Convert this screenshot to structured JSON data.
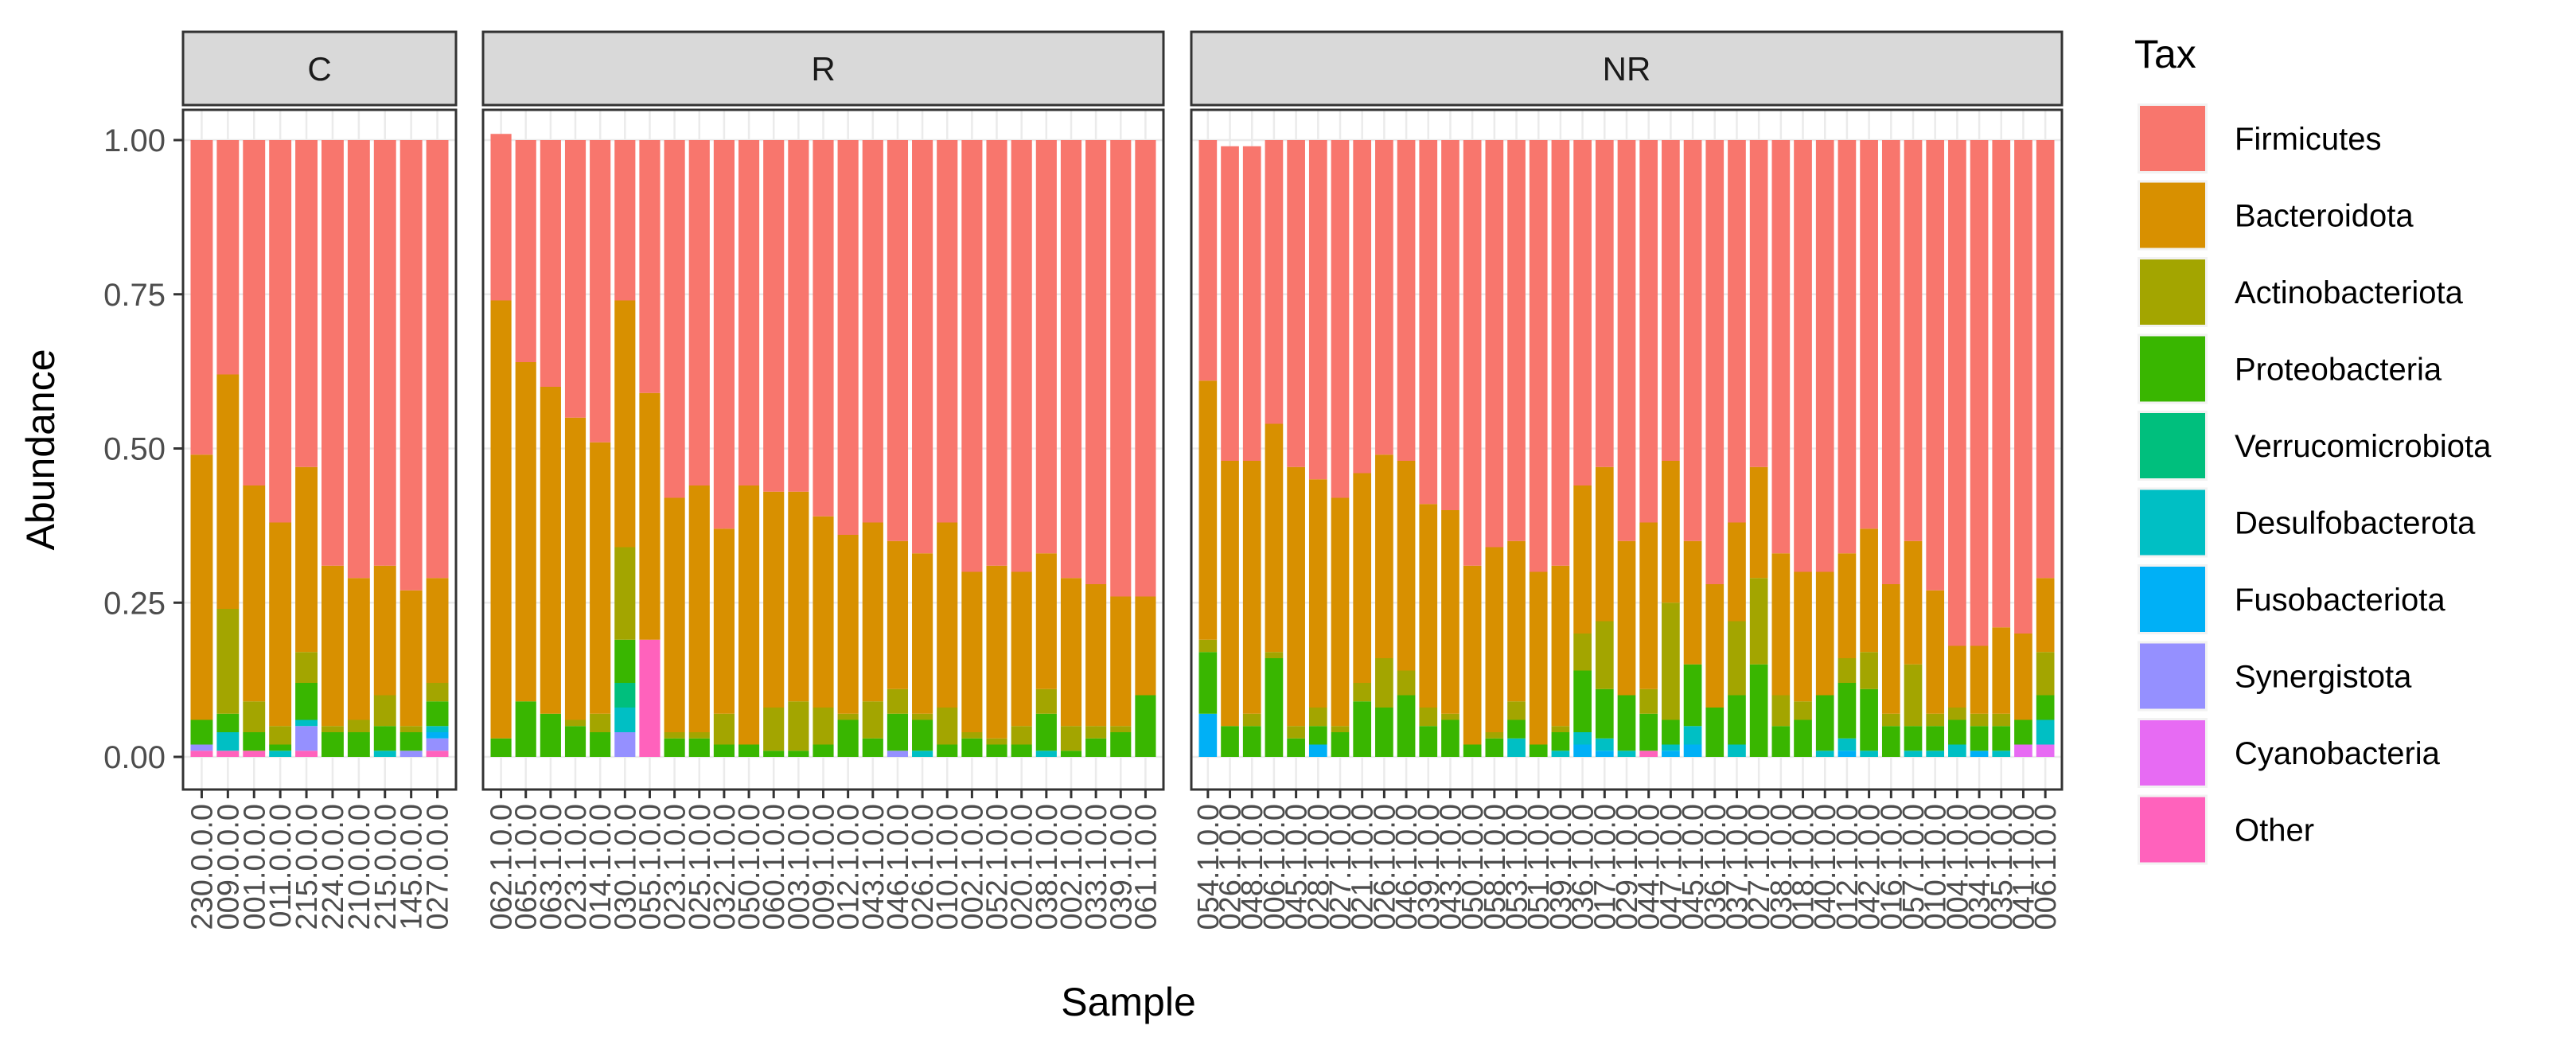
{
  "chart_data": {
    "type": "bar",
    "stacked": true,
    "ylabel": "Abundance",
    "xlabel": "Sample",
    "ylim": [
      0,
      1
    ],
    "yticks": [
      "0.00",
      "0.25",
      "0.50",
      "0.75",
      "1.00"
    ],
    "legend": {
      "title": "Tax",
      "position": "right",
      "entries": [
        "Firmicutes",
        "Bacteroidota",
        "Actinobacteriota",
        "Proteobacteria",
        "Verrucomicrobiota",
        "Desulfobacterota",
        "Fusobacteriota",
        "Synergistota",
        "Cyanobacteria",
        "Other"
      ]
    },
    "colors": {
      "Firmicutes": "#F8766D",
      "Bacteroidota": "#D89000",
      "Actinobacteriota": "#A3A500",
      "Proteobacteria": "#39B600",
      "Verrucomicrobiota": "#00BF7D",
      "Desulfobacterota": "#00BFC4",
      "Fusobacteriota": "#00B0F6",
      "Synergistota": "#9590FF",
      "Cyanobacteria": "#E76BF3",
      "Other": "#FF62BC"
    },
    "panels": [
      {
        "name": "C",
        "samples": [
          "230.0.0.0",
          "009.0.0.0",
          "001.0.0.0",
          "011.0.0.0",
          "215.0.0.0",
          "224.0.0.0",
          "210.0.0.0",
          "215.0.0.0",
          "145.0.0.0",
          "027.0.0.0"
        ],
        "stacks": [
          [
            0.51,
            0.43,
            0.0,
            0.04,
            0.0,
            0.0,
            0.0,
            0.01,
            0.0,
            0.01
          ],
          [
            0.38,
            0.38,
            0.17,
            0.03,
            0.0,
            0.03,
            0.0,
            0.0,
            0.0,
            0.01
          ],
          [
            0.56,
            0.35,
            0.05,
            0.03,
            0.0,
            0.0,
            0.0,
            0.0,
            0.0,
            0.01
          ],
          [
            0.62,
            0.33,
            0.03,
            0.01,
            0.0,
            0.01,
            0.0,
            0.0,
            0.0,
            0.0
          ],
          [
            0.53,
            0.3,
            0.05,
            0.06,
            0.0,
            0.01,
            0.0,
            0.04,
            0.0,
            0.01
          ],
          [
            0.69,
            0.26,
            0.01,
            0.04,
            0.0,
            0.0,
            0.0,
            0.0,
            0.0,
            0.0
          ],
          [
            0.71,
            0.23,
            0.02,
            0.04,
            0.0,
            0.0,
            0.0,
            0.0,
            0.0,
            0.0
          ],
          [
            0.69,
            0.21,
            0.05,
            0.04,
            0.0,
            0.01,
            0.0,
            0.0,
            0.0,
            0.0
          ],
          [
            0.73,
            0.22,
            0.01,
            0.03,
            0.0,
            0.0,
            0.0,
            0.01,
            0.0,
            0.0
          ],
          [
            0.71,
            0.17,
            0.03,
            0.04,
            0.0,
            0.01,
            0.01,
            0.02,
            0.0,
            0.01
          ]
        ]
      },
      {
        "name": "R",
        "samples": [
          "062.1.0.0",
          "065.1.0.0",
          "063.1.0.0",
          "023.1.0.0",
          "014.1.0.0",
          "030.1.0.0",
          "055.1.0.0",
          "023.1.0.0",
          "025.1.0.0",
          "032.1.0.0",
          "050.1.0.0",
          "060.1.0.0",
          "003.1.0.0",
          "009.1.0.0",
          "012.1.0.0",
          "043.1.0.0",
          "046.1.0.0",
          "026.1.0.0",
          "010.1.0.0",
          "002.1.0.0",
          "052.1.0.0",
          "020.1.0.0",
          "038.1.0.0",
          "002.1.0.0",
          "033.1.0.0",
          "039.1.0.0",
          "061.1.0.0"
        ],
        "stacks": [
          [
            0.27,
            0.71,
            0.0,
            0.03,
            0.0,
            0.0,
            0.0,
            0.0,
            0.0,
            0.0
          ],
          [
            0.36,
            0.55,
            0.0,
            0.09,
            0.0,
            0.0,
            0.0,
            0.0,
            0.0,
            0.0
          ],
          [
            0.4,
            0.53,
            0.0,
            0.07,
            0.0,
            0.0,
            0.0,
            0.0,
            0.0,
            0.0
          ],
          [
            0.45,
            0.49,
            0.01,
            0.05,
            0.0,
            0.0,
            0.0,
            0.0,
            0.0,
            0.0
          ],
          [
            0.49,
            0.44,
            0.03,
            0.04,
            0.0,
            0.0,
            0.0,
            0.0,
            0.0,
            0.0
          ],
          [
            0.26,
            0.4,
            0.15,
            0.07,
            0.04,
            0.04,
            0.0,
            0.04,
            0.0,
            0.0
          ],
          [
            0.41,
            0.4,
            0.0,
            0.0,
            0.0,
            0.0,
            0.0,
            0.0,
            0.0,
            0.19
          ],
          [
            0.58,
            0.38,
            0.01,
            0.03,
            0.0,
            0.0,
            0.0,
            0.0,
            0.0,
            0.0
          ],
          [
            0.56,
            0.4,
            0.01,
            0.03,
            0.0,
            0.0,
            0.0,
            0.0,
            0.0,
            0.0
          ],
          [
            0.63,
            0.3,
            0.05,
            0.02,
            0.0,
            0.0,
            0.0,
            0.0,
            0.0,
            0.0
          ],
          [
            0.56,
            0.42,
            0.0,
            0.02,
            0.0,
            0.0,
            0.0,
            0.0,
            0.0,
            0.0
          ],
          [
            0.57,
            0.35,
            0.07,
            0.01,
            0.0,
            0.0,
            0.0,
            0.0,
            0.0,
            0.0
          ],
          [
            0.57,
            0.34,
            0.08,
            0.01,
            0.0,
            0.0,
            0.0,
            0.0,
            0.0,
            0.0
          ],
          [
            0.61,
            0.31,
            0.06,
            0.02,
            0.0,
            0.0,
            0.0,
            0.0,
            0.0,
            0.0
          ],
          [
            0.64,
            0.29,
            0.01,
            0.06,
            0.0,
            0.0,
            0.0,
            0.0,
            0.0,
            0.0
          ],
          [
            0.62,
            0.29,
            0.06,
            0.03,
            0.0,
            0.0,
            0.0,
            0.0,
            0.0,
            0.0
          ],
          [
            0.65,
            0.24,
            0.04,
            0.06,
            0.0,
            0.0,
            0.0,
            0.01,
            0.0,
            0.0
          ],
          [
            0.67,
            0.26,
            0.01,
            0.05,
            0.0,
            0.01,
            0.0,
            0.0,
            0.0,
            0.0
          ],
          [
            0.62,
            0.3,
            0.06,
            0.02,
            0.0,
            0.0,
            0.0,
            0.0,
            0.0,
            0.0
          ],
          [
            0.7,
            0.26,
            0.01,
            0.03,
            0.0,
            0.0,
            0.0,
            0.0,
            0.0,
            0.0
          ],
          [
            0.69,
            0.28,
            0.01,
            0.02,
            0.0,
            0.0,
            0.0,
            0.0,
            0.0,
            0.0
          ],
          [
            0.7,
            0.25,
            0.03,
            0.02,
            0.0,
            0.0,
            0.0,
            0.0,
            0.0,
            0.0
          ],
          [
            0.67,
            0.22,
            0.04,
            0.06,
            0.0,
            0.01,
            0.0,
            0.0,
            0.0,
            0.0
          ],
          [
            0.71,
            0.24,
            0.04,
            0.01,
            0.0,
            0.0,
            0.0,
            0.0,
            0.0,
            0.0
          ],
          [
            0.72,
            0.23,
            0.02,
            0.03,
            0.0,
            0.0,
            0.0,
            0.0,
            0.0,
            0.0
          ],
          [
            0.74,
            0.21,
            0.01,
            0.04,
            0.0,
            0.0,
            0.0,
            0.0,
            0.0,
            0.0
          ],
          [
            0.74,
            0.16,
            0.0,
            0.1,
            0.0,
            0.0,
            0.0,
            0.0,
            0.0,
            0.0
          ]
        ]
      },
      {
        "name": "NR",
        "samples": [
          "054.1.0.0",
          "026.1.0.0",
          "048.1.0.0",
          "006.1.0.0",
          "045.1.0.0",
          "028.1.0.0",
          "027.1.0.0",
          "021.1.0.0",
          "026.1.0.0",
          "046.1.0.0",
          "039.1.0.0",
          "043.1.0.0",
          "050.1.0.0",
          "058.1.0.0",
          "053.1.0.0",
          "051.1.0.0",
          "039.1.0.0",
          "036.1.0.0",
          "017.1.0.0",
          "029.1.0.0",
          "044.1.0.0",
          "047.1.0.0",
          "045.1.0.0",
          "036.1.0.0",
          "037.1.0.0",
          "027.1.0.0",
          "038.1.0.0",
          "018.1.0.0",
          "040.1.0.0",
          "012.1.0.0",
          "042.1.0.0",
          "016.1.0.0",
          "057.1.0.0",
          "010.1.0.0",
          "004.1.0.0",
          "034.1.0.0",
          "035.1.0.0",
          "041.1.0.0",
          "006.1.0.0"
        ],
        "stacks": [
          [
            0.39,
            0.42,
            0.02,
            0.1,
            0.0,
            0.0,
            0.07,
            0.0,
            0.0,
            0.0
          ],
          [
            0.51,
            0.43,
            0.0,
            0.05,
            0.0,
            0.0,
            0.0,
            0.0,
            0.0,
            0.0
          ],
          [
            0.51,
            0.41,
            0.02,
            0.05,
            0.0,
            0.0,
            0.0,
            0.0,
            0.0,
            0.0
          ],
          [
            0.46,
            0.37,
            0.01,
            0.16,
            0.0,
            0.0,
            0.0,
            0.0,
            0.0,
            0.0
          ],
          [
            0.53,
            0.42,
            0.02,
            0.03,
            0.0,
            0.0,
            0.0,
            0.0,
            0.0,
            0.0
          ],
          [
            0.55,
            0.37,
            0.03,
            0.03,
            0.0,
            0.0,
            0.02,
            0.0,
            0.0,
            0.0
          ],
          [
            0.58,
            0.37,
            0.01,
            0.04,
            0.0,
            0.0,
            0.0,
            0.0,
            0.0,
            0.0
          ],
          [
            0.54,
            0.34,
            0.03,
            0.09,
            0.0,
            0.0,
            0.0,
            0.0,
            0.0,
            0.0
          ],
          [
            0.51,
            0.33,
            0.08,
            0.08,
            0.0,
            0.0,
            0.0,
            0.0,
            0.0,
            0.0
          ],
          [
            0.52,
            0.34,
            0.04,
            0.1,
            0.0,
            0.0,
            0.0,
            0.0,
            0.0,
            0.0
          ],
          [
            0.59,
            0.33,
            0.03,
            0.05,
            0.0,
            0.0,
            0.0,
            0.0,
            0.0,
            0.0
          ],
          [
            0.6,
            0.33,
            0.01,
            0.06,
            0.0,
            0.0,
            0.0,
            0.0,
            0.0,
            0.0
          ],
          [
            0.69,
            0.29,
            0.0,
            0.02,
            0.0,
            0.0,
            0.0,
            0.0,
            0.0,
            0.0
          ],
          [
            0.66,
            0.3,
            0.01,
            0.03,
            0.0,
            0.0,
            0.0,
            0.0,
            0.0,
            0.0
          ],
          [
            0.65,
            0.26,
            0.03,
            0.03,
            0.0,
            0.03,
            0.0,
            0.0,
            0.0,
            0.0
          ],
          [
            0.7,
            0.28,
            0.0,
            0.02,
            0.0,
            0.0,
            0.0,
            0.0,
            0.0,
            0.0
          ],
          [
            0.69,
            0.26,
            0.01,
            0.03,
            0.0,
            0.01,
            0.0,
            0.0,
            0.0,
            0.0
          ],
          [
            0.56,
            0.24,
            0.06,
            0.1,
            0.0,
            0.02,
            0.02,
            0.0,
            0.0,
            0.0
          ],
          [
            0.53,
            0.25,
            0.11,
            0.08,
            0.0,
            0.02,
            0.01,
            0.0,
            0.0,
            0.0
          ],
          [
            0.65,
            0.25,
            0.0,
            0.09,
            0.0,
            0.01,
            0.0,
            0.0,
            0.0,
            0.0
          ],
          [
            0.62,
            0.27,
            0.04,
            0.06,
            0.0,
            0.0,
            0.0,
            0.0,
            0.0,
            0.01
          ],
          [
            0.52,
            0.23,
            0.19,
            0.04,
            0.0,
            0.01,
            0.01,
            0.0,
            0.0,
            0.0
          ],
          [
            0.65,
            0.2,
            0.0,
            0.1,
            0.0,
            0.03,
            0.02,
            0.0,
            0.0,
            0.0
          ],
          [
            0.72,
            0.2,
            0.0,
            0.08,
            0.0,
            0.0,
            0.0,
            0.0,
            0.0,
            0.0
          ],
          [
            0.62,
            0.16,
            0.12,
            0.08,
            0.0,
            0.02,
            0.0,
            0.0,
            0.0,
            0.0
          ],
          [
            0.53,
            0.18,
            0.14,
            0.15,
            0.0,
            0.0,
            0.0,
            0.0,
            0.0,
            0.0
          ],
          [
            0.67,
            0.23,
            0.05,
            0.05,
            0.0,
            0.0,
            0.0,
            0.0,
            0.0,
            0.0
          ],
          [
            0.7,
            0.21,
            0.03,
            0.06,
            0.0,
            0.0,
            0.0,
            0.0,
            0.0,
            0.0
          ],
          [
            0.7,
            0.2,
            0.0,
            0.09,
            0.0,
            0.01,
            0.0,
            0.0,
            0.0,
            0.0
          ],
          [
            0.67,
            0.17,
            0.04,
            0.09,
            0.0,
            0.02,
            0.01,
            0.0,
            0.0,
            0.0
          ],
          [
            0.63,
            0.2,
            0.06,
            0.1,
            0.0,
            0.01,
            0.0,
            0.0,
            0.0,
            0.0
          ],
          [
            0.72,
            0.21,
            0.02,
            0.05,
            0.0,
            0.0,
            0.0,
            0.0,
            0.0,
            0.0
          ],
          [
            0.65,
            0.2,
            0.1,
            0.04,
            0.0,
            0.01,
            0.0,
            0.0,
            0.0,
            0.0
          ],
          [
            0.73,
            0.2,
            0.02,
            0.04,
            0.0,
            0.01,
            0.0,
            0.0,
            0.0,
            0.0
          ],
          [
            0.82,
            0.1,
            0.02,
            0.04,
            0.0,
            0.02,
            0.0,
            0.0,
            0.0,
            0.0
          ],
          [
            0.82,
            0.11,
            0.02,
            0.04,
            0.0,
            0.0,
            0.01,
            0.0,
            0.0,
            0.0
          ],
          [
            0.79,
            0.14,
            0.02,
            0.04,
            0.0,
            0.01,
            0.0,
            0.0,
            0.0,
            0.0
          ],
          [
            0.8,
            0.14,
            0.0,
            0.04,
            0.0,
            0.0,
            0.0,
            0.0,
            0.02,
            0.0
          ],
          [
            0.71,
            0.12,
            0.07,
            0.04,
            0.0,
            0.04,
            0.0,
            0.0,
            0.02,
            0.0
          ]
        ]
      }
    ]
  }
}
